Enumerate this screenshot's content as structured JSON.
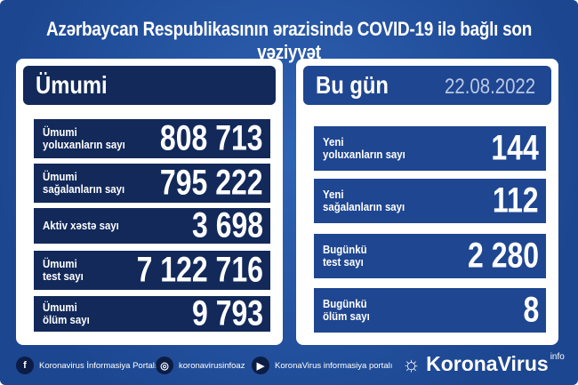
{
  "title": "Azərbaycan Respublikasının ərazisində COVID-19 ilə bağlı son vəziyyət",
  "left": {
    "header": "Ümumi",
    "rows": [
      {
        "label1": "Ümumi",
        "label2": "yoluxanların sayı",
        "value": "808 713"
      },
      {
        "label1": "Ümumi",
        "label2": "sağalanların sayı",
        "value": "795 222"
      },
      {
        "label1": "Aktiv xəstə sayı",
        "label2": "",
        "value": "3 698"
      },
      {
        "label1": "Ümumi",
        "label2": "test sayı",
        "value": "7 122 716"
      },
      {
        "label1": "Ümumi",
        "label2": "ölüm sayı",
        "value": "9 793"
      }
    ]
  },
  "right": {
    "header": "Bu gün",
    "date": "22.08.2022",
    "rows": [
      {
        "label1": "Yeni",
        "label2": "yoluxanların sayı",
        "value": "144"
      },
      {
        "label1": "Yeni",
        "label2": "sağalanların sayı",
        "value": "112"
      },
      {
        "label1": "Bugünkü",
        "label2": "test sayı",
        "value": "2 280"
      },
      {
        "label1": "Bugünkü",
        "label2": "ölüm sayı",
        "value": "8"
      }
    ]
  },
  "footer": {
    "facebook": "Koronavirus İnformasiya Portalı",
    "instagram": "koronavirusinfoaz",
    "youtube": "KoronaVirus informasiya portalı",
    "brand": "KoronaVirus",
    "brand_sup": "info"
  },
  "colors": {
    "background": "#1f4a96",
    "navy": "#12295a",
    "panel": "#ffffff"
  }
}
